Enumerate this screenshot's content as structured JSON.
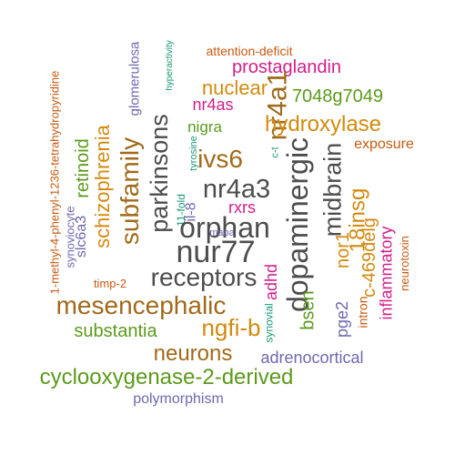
{
  "word_cloud": {
    "colors": {
      "gray": "#4d4d4d",
      "green": "#5c9a1c",
      "orange": "#d28a10",
      "purple": "#6f68b0",
      "magenta": "#d21f8a",
      "teal": "#1a9a78",
      "rust": "#c55a10",
      "brown": "#a06a1a"
    },
    "words": [
      {
        "text": "1-methyl-4-phenyl-1236-tetrahydropyridine",
        "color": "rust"
      },
      {
        "text": "glomerulosa",
        "color": "purple"
      },
      {
        "text": "hyperactivity",
        "color": "teal"
      },
      {
        "text": "attention-deficit",
        "color": "rust"
      },
      {
        "text": "prostaglandin",
        "color": "magenta"
      },
      {
        "text": "nuclear",
        "color": "orange"
      },
      {
        "text": "nr4as",
        "color": "magenta"
      },
      {
        "text": "7048g7049",
        "color": "green"
      },
      {
        "text": "parkinsons",
        "color": "gray"
      },
      {
        "text": "nr4a1",
        "color": "brown"
      },
      {
        "text": "nigra",
        "color": "green"
      },
      {
        "text": "hydroxylase",
        "color": "orange"
      },
      {
        "text": "schizophrenia",
        "color": "orange"
      },
      {
        "text": "retinoid",
        "color": "green"
      },
      {
        "text": "tyrosine",
        "color": "teal"
      },
      {
        "text": "c-t",
        "color": "teal"
      },
      {
        "text": "exposure",
        "color": "rust"
      },
      {
        "text": "ivs6",
        "color": "brown"
      },
      {
        "text": "subfamily",
        "color": "brown"
      },
      {
        "text": "nr4a3",
        "color": "gray"
      },
      {
        "text": "dopaminergic",
        "color": "gray"
      },
      {
        "text": "midbrain",
        "color": "gray"
      },
      {
        "text": "11-fold",
        "color": "teal"
      },
      {
        "text": "il-8",
        "color": "purple"
      },
      {
        "text": "rxrs",
        "color": "magenta"
      },
      {
        "text": "18insg",
        "color": "orange"
      },
      {
        "text": "c-469delg",
        "color": "orange"
      },
      {
        "text": "synoviocyte",
        "color": "purple"
      },
      {
        "text": "slc6a3",
        "color": "purple"
      },
      {
        "text": "orphan",
        "color": "gray"
      },
      {
        "text": "maoa",
        "color": "purple"
      },
      {
        "text": "nor1",
        "color": "orange"
      },
      {
        "text": "inflammatory",
        "color": "magenta"
      },
      {
        "text": "nur77",
        "color": "gray"
      },
      {
        "text": "neurotoxin",
        "color": "rust"
      },
      {
        "text": "timp-2",
        "color": "rust"
      },
      {
        "text": "receptors",
        "color": "gray"
      },
      {
        "text": "adhd",
        "color": "magenta"
      },
      {
        "text": "bsen",
        "color": "green"
      },
      {
        "text": "intron",
        "color": "rust"
      },
      {
        "text": "mesencephalic",
        "color": "brown"
      },
      {
        "text": "synovial",
        "color": "teal"
      },
      {
        "text": "pge2",
        "color": "purple"
      },
      {
        "text": "ngfi-b",
        "color": "orange"
      },
      {
        "text": "substantia",
        "color": "green"
      },
      {
        "text": "neurons",
        "color": "brown"
      },
      {
        "text": "adrenocortical",
        "color": "purple"
      },
      {
        "text": "cyclooxygenase-2-derived",
        "color": "green"
      },
      {
        "text": "polymorphism",
        "color": "purple"
      }
    ]
  }
}
